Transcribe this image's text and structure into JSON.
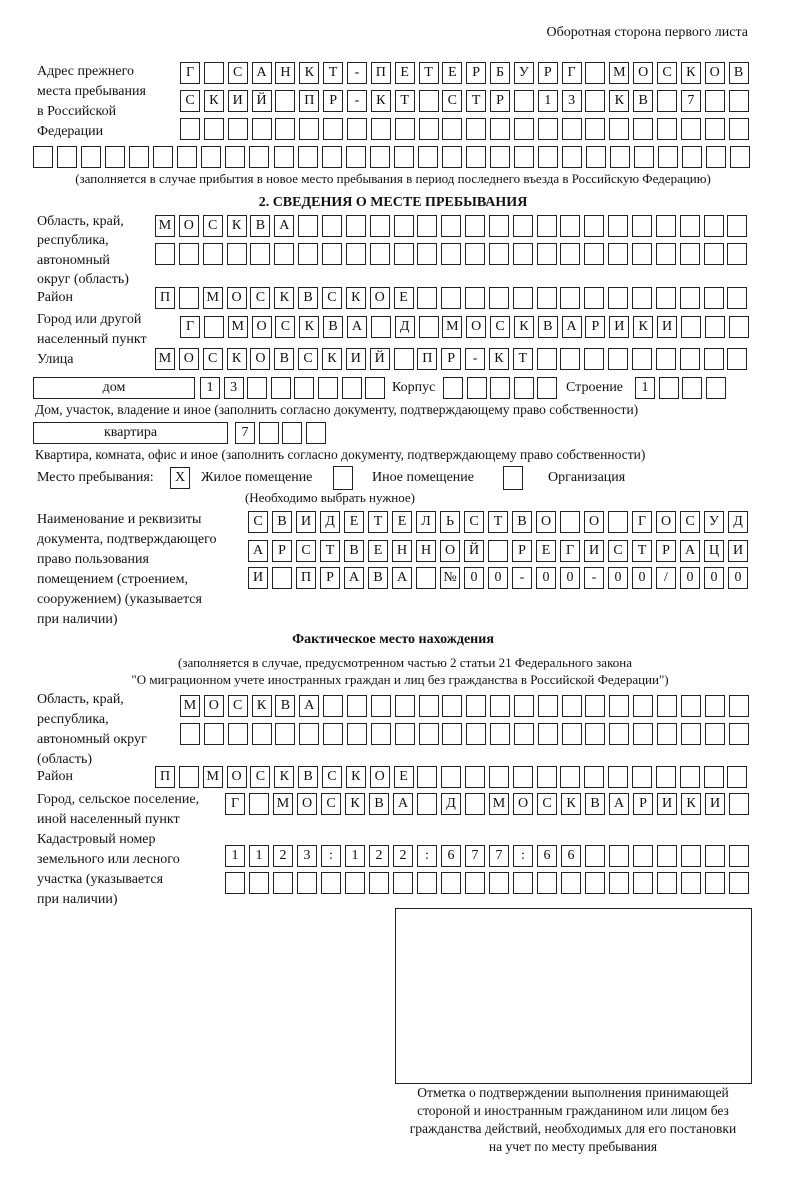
{
  "header": {
    "sheet_side": "Оборотная сторона первого листа"
  },
  "prev_address": {
    "label": [
      "Адрес прежнего",
      "места пребывания",
      "в Российской",
      "Федерации"
    ],
    "rows": [
      [
        "Г",
        "",
        "С",
        "А",
        "Н",
        "К",
        "Т",
        "-",
        "П",
        "Е",
        "Т",
        "Е",
        "Р",
        "Б",
        "У",
        "Р",
        "Г",
        "",
        "М",
        "О",
        "С",
        "К",
        "О",
        "В"
      ],
      [
        "С",
        "К",
        "И",
        "Й",
        "",
        "П",
        "Р",
        "-",
        "К",
        "Т",
        "",
        "С",
        "Т",
        "Р",
        "",
        "1",
        "3",
        "",
        "К",
        "В",
        "",
        "7",
        "",
        ""
      ],
      [
        "",
        "",
        "",
        "",
        "",
        "",
        "",
        "",
        "",
        "",
        "",
        "",
        "",
        "",
        "",
        "",
        "",
        "",
        "",
        "",
        "",
        "",
        "",
        ""
      ],
      [
        "",
        "",
        "",
        "",
        "",
        "",
        "",
        "",
        "",
        "",
        "",
        "",
        "",
        "",
        "",
        "",
        "",
        "",
        "",
        "",
        "",
        "",
        "",
        "",
        "",
        "",
        "",
        "",
        "",
        ""
      ]
    ],
    "note": "(заполняется в случае прибытия в новое место пребывания в период последнего въезда в Российскую Федерацию)"
  },
  "section2": {
    "title": "2. СВЕДЕНИЯ О МЕСТЕ ПРЕБЫВАНИЯ",
    "region": {
      "label": [
        "Область, край,",
        "республика,",
        "автономный",
        "округ (область)"
      ],
      "rows": [
        [
          "М",
          "О",
          "С",
          "К",
          "В",
          "А",
          "",
          "",
          "",
          "",
          "",
          "",
          "",
          "",
          "",
          "",
          "",
          "",
          "",
          "",
          "",
          "",
          "",
          "",
          ""
        ],
        [
          "",
          "",
          "",
          "",
          "",
          "",
          "",
          "",
          "",
          "",
          "",
          "",
          "",
          "",
          "",
          "",
          "",
          "",
          "",
          "",
          "",
          "",
          "",
          "",
          ""
        ]
      ]
    },
    "district": {
      "label": "Район",
      "row": [
        "П",
        "",
        "М",
        "О",
        "С",
        "К",
        "В",
        "С",
        "К",
        "О",
        "Е",
        "",
        "",
        "",
        "",
        "",
        "",
        "",
        "",
        "",
        "",
        "",
        "",
        "",
        ""
      ]
    },
    "city": {
      "label": [
        "Город или другой",
        "населенный пункт"
      ],
      "row": [
        "Г",
        "",
        "М",
        "О",
        "С",
        "К",
        "В",
        "А",
        "",
        "Д",
        "",
        "М",
        "О",
        "С",
        "К",
        "В",
        "А",
        "Р",
        "И",
        "К",
        "И",
        "",
        "",
        ""
      ]
    },
    "street": {
      "label": "Улица",
      "row": [
        "М",
        "О",
        "С",
        "К",
        "О",
        "В",
        "С",
        "К",
        "И",
        "Й",
        "",
        "П",
        "Р",
        "-",
        "К",
        "Т",
        "",
        "",
        "",
        "",
        "",
        "",
        "",
        "",
        ""
      ]
    },
    "house": {
      "type": "дом",
      "number": [
        "1",
        "3",
        "",
        "",
        "",
        "",
        "",
        ""
      ],
      "korpus_label": "Корпус",
      "korpus": [
        "",
        "",
        "",
        "",
        ""
      ],
      "stroenie_label": "Строение",
      "stroenie": [
        "1",
        "",
        "",
        ""
      ],
      "note": "Дом, участок, владение и иное (заполнить согласно документу, подтверждающему право собственности)"
    },
    "apartment": {
      "type": "квартира",
      "number": [
        "7",
        "",
        "",
        ""
      ],
      "note": "Квартира, комната, офис и иное (заполнить согласно документу, подтверждающему право собственности)"
    },
    "place_type": {
      "label": "Место пребывания:",
      "options": [
        {
          "label": "Жилое помещение",
          "mark": "X",
          "selected": true
        },
        {
          "label": "Иное помещение",
          "mark": "",
          "selected": false
        },
        {
          "label": "Организация",
          "mark": "",
          "selected": false
        }
      ],
      "hint": "(Необходимо выбрать нужное)"
    },
    "document": {
      "label": [
        "Наименование и реквизиты",
        "документа, подтверждающего",
        "право пользования",
        "помещением (строением,",
        "сооружением) (указывается",
        "при наличии)"
      ],
      "rows": [
        [
          "С",
          "В",
          "И",
          "Д",
          "Е",
          "Т",
          "Е",
          "Л",
          "Ь",
          "С",
          "Т",
          "В",
          "О",
          "",
          "О",
          "",
          "Г",
          "О",
          "С",
          "У",
          "Д"
        ],
        [
          "А",
          "Р",
          "С",
          "Т",
          "В",
          "Е",
          "Н",
          "Н",
          "О",
          "Й",
          "",
          "Р",
          "Е",
          "Г",
          "И",
          "С",
          "Т",
          "Р",
          "А",
          "Ц",
          "И"
        ],
        [
          "И",
          "",
          "П",
          "Р",
          "А",
          "В",
          "А",
          "",
          "№",
          "0",
          "0",
          "-",
          "0",
          "0",
          "-",
          "0",
          "0",
          "/",
          "0",
          "0",
          "0"
        ]
      ]
    }
  },
  "actual": {
    "title": "Фактическое место нахождения",
    "note": [
      "(заполняется в случае, предусмотренном частью 2 статьи 21 Федерального закона",
      "\"О миграционном учете иностранных граждан и лиц без гражданства в Российской Федерации\")"
    ],
    "region": {
      "label": [
        "Область, край,",
        "республика,",
        "автономный округ",
        "(область)"
      ],
      "rows": [
        [
          "М",
          "О",
          "С",
          "К",
          "В",
          "А",
          "",
          "",
          "",
          "",
          "",
          "",
          "",
          "",
          "",
          "",
          "",
          "",
          "",
          "",
          "",
          "",
          "",
          ""
        ],
        [
          "",
          "",
          "",
          "",
          "",
          "",
          "",
          "",
          "",
          "",
          "",
          "",
          "",
          "",
          "",
          "",
          "",
          "",
          "",
          "",
          "",
          "",
          "",
          ""
        ]
      ]
    },
    "district": {
      "label": "Район",
      "row": [
        "П",
        "",
        "М",
        "О",
        "С",
        "К",
        "В",
        "С",
        "К",
        "О",
        "Е",
        "",
        "",
        "",
        "",
        "",
        "",
        "",
        "",
        "",
        "",
        "",
        "",
        "",
        ""
      ]
    },
    "city": {
      "label": [
        "Город, сельское поселение,",
        "иной населенный пункт"
      ],
      "row": [
        "Г",
        "",
        "М",
        "О",
        "С",
        "К",
        "В",
        "А",
        "",
        "Д",
        "",
        "М",
        "О",
        "С",
        "К",
        "В",
        "А",
        "Р",
        "И",
        "К",
        "И",
        ""
      ]
    },
    "cadastral": {
      "label": [
        "Кадастровый номер",
        "земельного или лесного",
        "участка (указывается",
        "при наличии)"
      ],
      "rows": [
        [
          "1",
          "1",
          "2",
          "3",
          ":",
          "1",
          "2",
          "2",
          ":",
          "6",
          "7",
          "7",
          ":",
          "6",
          "6",
          "",
          "",
          "",
          "",
          "",
          "",
          ""
        ],
        [
          "",
          "",
          "",
          "",
          "",
          "",
          "",
          "",
          "",
          "",
          "",
          "",
          "",
          "",
          "",
          "",
          "",
          "",
          "",
          "",
          "",
          ""
        ]
      ]
    }
  },
  "confirmation": {
    "caption": [
      "Отметка о подтверждении выполнения принимающей",
      "стороной и иностранным гражданином или лицом без",
      "гражданства действий, необходимых для его постановки",
      "на учет по месту пребывания"
    ]
  }
}
